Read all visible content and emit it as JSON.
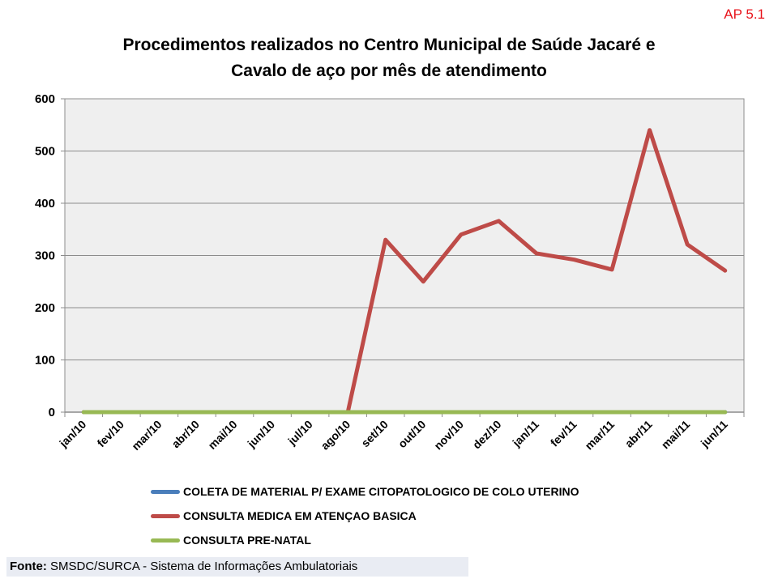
{
  "header": {
    "tag": "AP 5.1"
  },
  "footer": {
    "label": "Fonte:",
    "text": "SMSDC/SURCA - Sistema de Informações Ambulatoriais"
  },
  "colors": {
    "series1": "#4a7ebb",
    "series2": "#be4b48",
    "series3": "#98b954",
    "plot_bg": "#efefef",
    "grid": "#8c8c8c",
    "tag": "#e8141c"
  },
  "chart_data": {
    "type": "line",
    "title_lines": [
      "Procedimentos realizados no Centro Municipal de Saúde Jacaré e",
      "Cavalo de aço por mês de atendimento"
    ],
    "categories": [
      "jan/10",
      "fev/10",
      "mar/10",
      "abr/10",
      "mai/10",
      "jun/10",
      "jul/10",
      "ago/10",
      "set/10",
      "out/10",
      "nov/10",
      "dez/10",
      "jan/11",
      "fev/11",
      "mar/11",
      "abr/11",
      "mai/11",
      "jun/11"
    ],
    "yticks": [
      "0",
      "100",
      "200",
      "300",
      "400",
      "500",
      "600"
    ],
    "ylim": [
      0,
      600
    ],
    "grid": true,
    "legend_position": "bottom",
    "series": [
      {
        "name": "COLETA DE MATERIAL P/ EXAME CITOPATOLOGICO DE COLO UTERINO",
        "color": "#4a7ebb",
        "values": [
          0,
          0,
          0,
          0,
          0,
          0,
          0,
          0,
          0,
          0,
          0,
          0,
          0,
          0,
          0,
          0,
          0,
          0
        ]
      },
      {
        "name": "CONSULTA MEDICA EM ATENÇAO BASICA",
        "color": "#be4b48",
        "values": [
          0,
          0,
          0,
          0,
          0,
          0,
          0,
          0,
          330,
          250,
          340,
          366,
          304,
          292,
          273,
          540,
          321,
          271
        ]
      },
      {
        "name": "CONSULTA PRE-NATAL",
        "color": "#98b954",
        "values": [
          0,
          0,
          0,
          0,
          0,
          0,
          0,
          0,
          0,
          0,
          0,
          0,
          0,
          0,
          0,
          0,
          0,
          0
        ]
      }
    ]
  }
}
